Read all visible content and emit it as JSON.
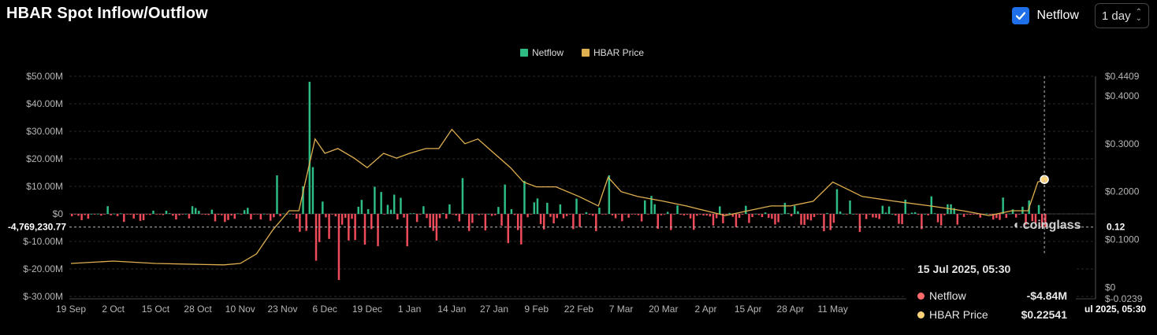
{
  "header": {
    "title": "HBAR Spot Inflow/Outflow",
    "netflow_toggle_label": "Netflow",
    "netflow_checked": true,
    "interval": "1 day"
  },
  "tooltip": {
    "date": "15 Jul 2025, 05:30",
    "rows": [
      {
        "label": "Netflow",
        "value": "-$4.84M",
        "color": "#ff6b6b"
      },
      {
        "label": "HBAR Price",
        "value": "$0.22541",
        "color": "#ffd27a"
      }
    ]
  },
  "crosshair": {
    "y_label": "-4,769,230.77",
    "right_label": "0.12",
    "x_label": "ul 2025, 05:30"
  },
  "watermark": "coinglass",
  "chart_data": {
    "type": "bar",
    "title": "HBAR Spot Inflow/Outflow",
    "legend": {
      "position": "top-center",
      "entries": [
        {
          "name": "Netflow",
          "color": "#2ebd85"
        },
        {
          "name": "HBAR Price",
          "color": "#e0b050"
        }
      ]
    },
    "x_tick_labels": [
      "19 Sep",
      "2 Oct",
      "15 Oct",
      "28 Oct",
      "10 Nov",
      "23 Nov",
      "6 Dec",
      "19 Dec",
      "1 Jan",
      "14 Jan",
      "27 Jan",
      "9 Feb",
      "22 Feb",
      "7 Mar",
      "20 Mar",
      "2 Apr",
      "15 Apr",
      "28 Apr",
      "11 May"
    ],
    "y_left": {
      "ticks": [
        "$50.00M",
        "$40.00M",
        "$30.00M",
        "$20.00M",
        "$10.00M",
        "$0",
        "$-10.00M",
        "$-20.00M",
        "$-30.00M"
      ],
      "range": [
        -30,
        50
      ],
      "unit": "M USD"
    },
    "y_right": {
      "ticks": [
        "$0.4409",
        "$0.4000",
        "$0.3000",
        "$0.2000",
        "$0.1000",
        "$0",
        "$-0.0239"
      ],
      "range": [
        -0.0239,
        0.4409
      ]
    },
    "netflow_key_values_M": [
      {
        "date": "1 Dec",
        "value": 48
      },
      {
        "date": "2 Dec",
        "value": 17
      },
      {
        "date": "29 Nov",
        "value": 10
      },
      {
        "date": "21 Nov",
        "value": 14
      },
      {
        "date": "3 Dec",
        "value": -17
      },
      {
        "date": "10 Dec",
        "value": -24
      },
      {
        "date": "17 Jan",
        "value": 13
      },
      {
        "date": "5 Feb",
        "value": 12
      },
      {
        "date": "3 Mar",
        "value": 14
      },
      {
        "date": "12 May",
        "value": 9
      },
      {
        "date": "15 Jul",
        "value": -4.84
      }
    ],
    "price_series": {
      "name": "HBAR Price",
      "dates": [
        "19 Sep",
        "2 Oct",
        "15 Oct",
        "28 Oct",
        "5 Nov",
        "10 Nov",
        "15 Nov",
        "20 Nov",
        "25 Nov",
        "28 Nov",
        "1 Dec",
        "3 Dec",
        "6 Dec",
        "10 Dec",
        "15 Dec",
        "19 Dec",
        "24 Dec",
        "28 Dec",
        "1 Jan",
        "6 Jan",
        "10 Jan",
        "14 Jan",
        "18 Jan",
        "22 Jan",
        "27 Jan",
        "1 Feb",
        "5 Feb",
        "9 Feb",
        "15 Feb",
        "22 Feb",
        "28 Feb",
        "3 Mar",
        "7 Mar",
        "12 Mar",
        "20 Mar",
        "27 Mar",
        "2 Apr",
        "8 Apr",
        "15 Apr",
        "22 Apr",
        "28 Apr",
        "5 May",
        "11 May",
        "14 May",
        "20 May",
        "30 May",
        "10 Jun",
        "20 Jun",
        "28 Jun",
        "5 Jul",
        "10 Jul",
        "13 Jul",
        "15 Jul"
      ],
      "values": [
        0.05,
        0.055,
        0.05,
        0.048,
        0.047,
        0.05,
        0.07,
        0.12,
        0.16,
        0.16,
        0.25,
        0.31,
        0.28,
        0.29,
        0.27,
        0.25,
        0.28,
        0.27,
        0.28,
        0.29,
        0.29,
        0.33,
        0.3,
        0.31,
        0.28,
        0.25,
        0.22,
        0.21,
        0.21,
        0.19,
        0.17,
        0.23,
        0.2,
        0.19,
        0.18,
        0.17,
        0.16,
        0.15,
        0.16,
        0.17,
        0.17,
        0.18,
        0.22,
        0.21,
        0.19,
        0.18,
        0.17,
        0.16,
        0.15,
        0.16,
        0.16,
        0.22,
        0.22541
      ]
    }
  }
}
